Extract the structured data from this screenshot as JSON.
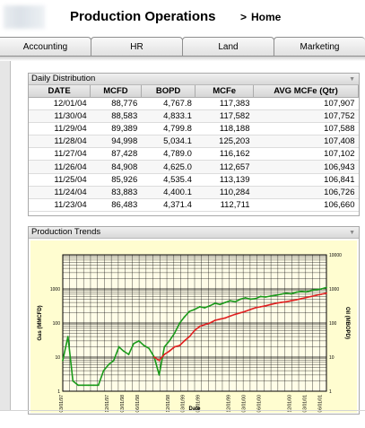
{
  "header": {
    "app_title": "Production Operations",
    "home_arrow": ">",
    "home_label": "Home"
  },
  "tabs": [
    "Accounting",
    "HR",
    "Land",
    "Marketing"
  ],
  "distribution": {
    "title": "Daily Distribution",
    "columns": [
      "DATE",
      "MCFD",
      "BOPD",
      "MCFe",
      "AVG MCFe (Qtr)"
    ],
    "rows": [
      [
        "12/01/04",
        "88,776",
        "4,767.8",
        "117,383",
        "107,907"
      ],
      [
        "11/30/04",
        "88,583",
        "4,833.1",
        "117,582",
        "107,752"
      ],
      [
        "11/29/04",
        "89,389",
        "4,799.8",
        "118,188",
        "107,588"
      ],
      [
        "11/28/04",
        "94,998",
        "5,034.1",
        "125,203",
        "107,408"
      ],
      [
        "11/27/04",
        "87,428",
        "4,789.0",
        "116,162",
        "107,102"
      ],
      [
        "11/26/04",
        "84,908",
        "4,625.0",
        "112,657",
        "106,943"
      ],
      [
        "11/25/04",
        "85,926",
        "4,535.4",
        "113,139",
        "106,841"
      ],
      [
        "11/24/04",
        "83,883",
        "4,400.1",
        "110,284",
        "106,726"
      ],
      [
        "11/23/04",
        "86,483",
        "4,371.4",
        "112,711",
        "106,660"
      ]
    ]
  },
  "trends": {
    "title": "Production Trends"
  },
  "chart_data": {
    "type": "line",
    "title": "",
    "xlabel": "Date",
    "ylabel": "Gas (MMCFD)",
    "y2label": "Oil (MBOPD)",
    "y_log_scale": true,
    "ylim": [
      1,
      10000
    ],
    "y2lim": [
      1,
      10000
    ],
    "y_ticks": [
      "1",
      "10",
      "100",
      "1000"
    ],
    "y2_ticks": [
      "1",
      "10",
      "100",
      "1000",
      "10000"
    ],
    "x_ticks": [
      "03/01/97",
      "12/01/97",
      "03/01/98",
      "06/01/98",
      "12/01/98",
      "03/01/99",
      "06/01/99",
      "12/01/99",
      "03/01/00",
      "06/01/00",
      "12/01/00",
      "03/01/01",
      "06/01/01"
    ],
    "grid": true,
    "legend": "none",
    "colors": {
      "background": "#fffdd0",
      "gas": "#1a9a1a",
      "oil": "#e02020"
    },
    "series": [
      {
        "color": "#1a9a1a",
        "x": [
          "03/01/97",
          "04/01/97",
          "05/01/97",
          "06/01/97",
          "07/01/97",
          "08/01/97",
          "09/01/97",
          "10/01/97",
          "11/01/97",
          "12/01/97",
          "01/01/98",
          "02/01/98",
          "03/01/98",
          "04/01/98",
          "05/01/98",
          "06/01/98",
          "07/01/98",
          "08/01/98",
          "09/01/98",
          "10/01/98",
          "11/01/98",
          "12/01/98",
          "01/01/99",
          "02/01/99",
          "03/01/99",
          "04/01/99",
          "05/01/99",
          "06/01/99",
          "07/01/99",
          "08/01/99",
          "09/01/99",
          "10/01/99",
          "11/01/99",
          "12/01/99",
          "01/01/00",
          "02/01/00",
          "03/01/00",
          "04/01/00",
          "05/01/00",
          "06/01/00",
          "07/01/00",
          "08/01/00",
          "09/01/00",
          "10/01/00",
          "11/01/00",
          "12/01/00",
          "01/01/01",
          "02/01/01",
          "03/01/01",
          "04/01/01",
          "05/01/01",
          "06/01/01",
          "07/01/01"
        ],
        "values": [
          8,
          40,
          2,
          1.5,
          1.5,
          1.5,
          1.5,
          1.5,
          4,
          6,
          8,
          20,
          15,
          12,
          25,
          30,
          22,
          18,
          10,
          3,
          20,
          30,
          50,
          100,
          150,
          220,
          250,
          300,
          280,
          320,
          380,
          350,
          400,
          450,
          420,
          500,
          550,
          500,
          520,
          600,
          580,
          620,
          650,
          700,
          750,
          720,
          800,
          850,
          820,
          900,
          950,
          1000,
          1100
        ]
      },
      {
        "color": "#e02020",
        "x": [
          "09/01/98",
          "10/01/98",
          "11/01/98",
          "12/01/98",
          "01/01/99",
          "02/01/99",
          "03/01/99",
          "04/01/99",
          "05/01/99",
          "06/01/99",
          "07/01/99",
          "08/01/99",
          "09/01/99",
          "10/01/99",
          "11/01/99",
          "12/01/99",
          "01/01/00",
          "02/01/00",
          "03/01/00",
          "04/01/00",
          "05/01/00",
          "06/01/00",
          "07/01/00",
          "08/01/00",
          "09/01/00",
          "10/01/00",
          "11/01/00",
          "12/01/00",
          "01/01/01",
          "02/01/01",
          "03/01/01",
          "04/01/01",
          "05/01/01",
          "06/01/01",
          "07/01/01"
        ],
        "values": [
          10,
          8,
          12,
          15,
          20,
          22,
          30,
          40,
          60,
          80,
          90,
          100,
          120,
          130,
          140,
          160,
          180,
          200,
          220,
          250,
          280,
          300,
          320,
          350,
          380,
          400,
          420,
          450,
          480,
          520,
          560,
          600,
          650,
          700,
          750
        ]
      }
    ]
  }
}
